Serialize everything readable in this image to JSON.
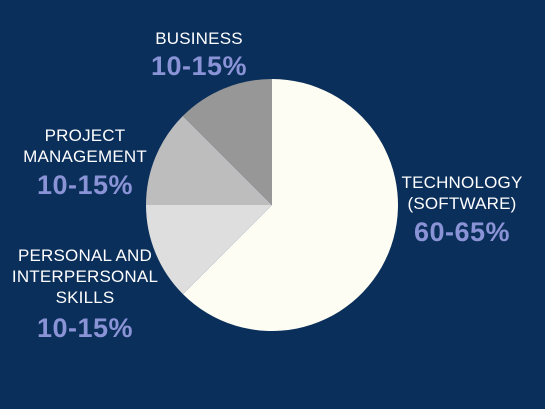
{
  "colors": {
    "background": "#0b2f5b",
    "label": "#ffffff",
    "percent": "#8a93d6"
  },
  "chart_data": {
    "type": "pie",
    "start_angle_deg": 0,
    "direction": "clockwise",
    "slices": [
      {
        "label": "TECHNOLOGY\n(SOFTWARE)",
        "value_label": "60-65%",
        "value": 62.5,
        "color": "#fdfdf3"
      },
      {
        "label": "PERSONAL AND\nINTERPERSONAL\nSKILLS",
        "value_label": "10-15%",
        "value": 12.5,
        "color": "#dededf"
      },
      {
        "label": "PROJECT\nMANAGEMENT",
        "value_label": "10-15%",
        "value": 12.5,
        "color": "#bdbdbd"
      },
      {
        "label": "BUSINESS",
        "value_label": "10-15%",
        "value": 12.5,
        "color": "#979797"
      }
    ]
  }
}
